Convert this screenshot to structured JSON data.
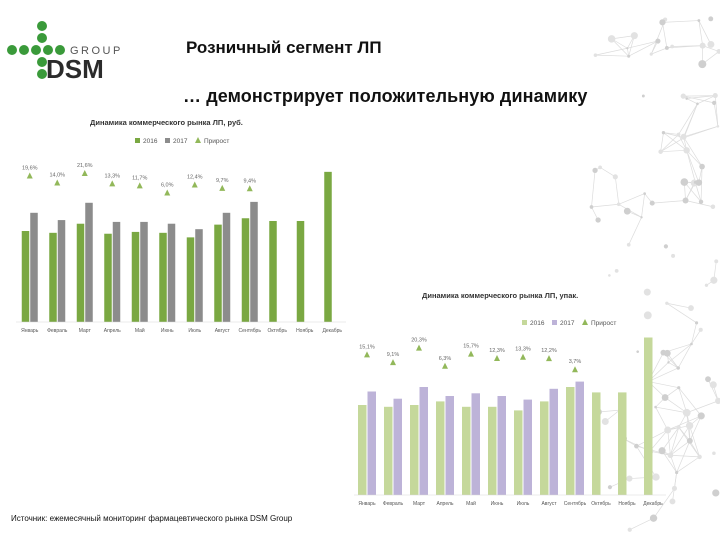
{
  "logo": {
    "group_text": "GROUP",
    "brand_text": "DSM"
  },
  "slide": {
    "title": "Розничный сегмент ЛП",
    "subtitle": "… демонстрирует положительную динамику"
  },
  "colors": {
    "green": "#7aa842",
    "gray": "#8c8c8c",
    "light_green": "#c5d89b",
    "lavender": "#bdb3d8",
    "triangle_green": "#92b85a"
  },
  "source": "Источник: ежемесячный мониторинг фармацевтического рынка DSM Group",
  "chart_data": [
    {
      "type": "bar",
      "title": "Динамика коммерческого рынка ЛП, руб.",
      "categories": [
        "Январь",
        "Февраль",
        "Март",
        "Апрель",
        "Май",
        "Июнь",
        "Июль",
        "Август",
        "Сентябрь",
        "Октябрь",
        "Ноябрь",
        "Декабрь"
      ],
      "series": [
        {
          "name": "2016",
          "values": [
            100,
            98,
            108,
            97,
            99,
            98,
            93,
            107,
            114,
            111,
            111,
            165
          ],
          "color": "#7aa842"
        },
        {
          "name": "2017",
          "values": [
            120,
            112,
            131,
            110,
            110,
            108,
            102,
            120,
            132,
            null,
            null,
            null
          ],
          "color": "#8c8c8c"
        }
      ],
      "growth_series": {
        "name": "Прирост",
        "labels": [
          "19,6%",
          "14,0%",
          "21,6%",
          "13,3%",
          "11,7%",
          "6,0%",
          "12,4%",
          "9,7%",
          "9,4%",
          null,
          null,
          null
        ],
        "values": [
          19.6,
          14.0,
          21.6,
          13.3,
          11.7,
          6.0,
          12.4,
          9.7,
          9.4,
          null,
          null,
          null
        ]
      },
      "ylim": [
        0,
        200
      ],
      "legend": "top"
    },
    {
      "type": "bar",
      "title": "Динамика коммерческого рынка ЛП, упак.",
      "categories": [
        "Январь",
        "Февраль",
        "Март",
        "Апрель",
        "Май",
        "Июнь",
        "Июль",
        "Август",
        "Сентябрь",
        "Октябрь",
        "Ноябрь",
        "Декабрь"
      ],
      "series": [
        {
          "name": "2016",
          "values": [
            100,
            98,
            100,
            104,
            98,
            98,
            94,
            104,
            120,
            114,
            114,
            175
          ],
          "color": "#c5d89b"
        },
        {
          "name": "2017",
          "values": [
            115,
            107,
            120,
            110,
            113,
            110,
            106,
            118,
            126,
            null,
            null,
            null
          ],
          "color": "#bdb3d8"
        }
      ],
      "growth_series": {
        "name": "Прирост",
        "labels": [
          "15,1%",
          "9,1%",
          "20,3%",
          "6,3%",
          "15,7%",
          "12,3%",
          "13,3%",
          "12,2%",
          "3,7%",
          null,
          null,
          null
        ],
        "values": [
          15.1,
          9.1,
          20.3,
          6.3,
          15.7,
          12.3,
          13.3,
          12.2,
          3.7,
          null,
          null,
          null
        ]
      },
      "ylim": [
        0,
        200
      ],
      "legend": "top"
    }
  ]
}
